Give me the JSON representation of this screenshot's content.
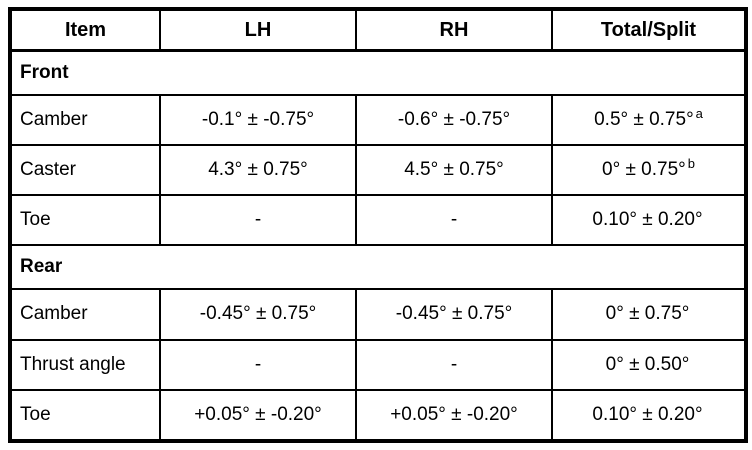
{
  "table": {
    "headers": [
      "Item",
      "LH",
      "RH",
      "Total/Split"
    ],
    "sections": [
      {
        "title": "Front",
        "rows": [
          {
            "item": "Camber",
            "lh": "-0.1° ± -0.75°",
            "rh": "-0.6° ± -0.75°",
            "total": "0.5° ± 0.75°",
            "total_sup": "a"
          },
          {
            "item": "Caster",
            "lh": "4.3° ± 0.75°",
            "rh": "4.5° ± 0.75°",
            "total": "0° ± 0.75°",
            "total_sup": "b"
          },
          {
            "item": "Toe",
            "lh": "-",
            "rh": "-",
            "total": "0.10° ± 0.20°",
            "total_sup": ""
          }
        ]
      },
      {
        "title": "Rear",
        "rows": [
          {
            "item": "Camber",
            "lh": "-0.45° ± 0.75°",
            "rh": "-0.45° ± 0.75°",
            "total": "0° ± 0.75°",
            "total_sup": ""
          },
          {
            "item": "Thrust angle",
            "lh": "-",
            "rh": "-",
            "total": "0° ± 0.50°",
            "total_sup": ""
          },
          {
            "item": "Toe",
            "lh": "+0.05° ± -0.20°",
            "rh": "+0.05° ± -0.20°",
            "total": "0.10° ± 0.20°",
            "total_sup": ""
          }
        ]
      }
    ]
  }
}
